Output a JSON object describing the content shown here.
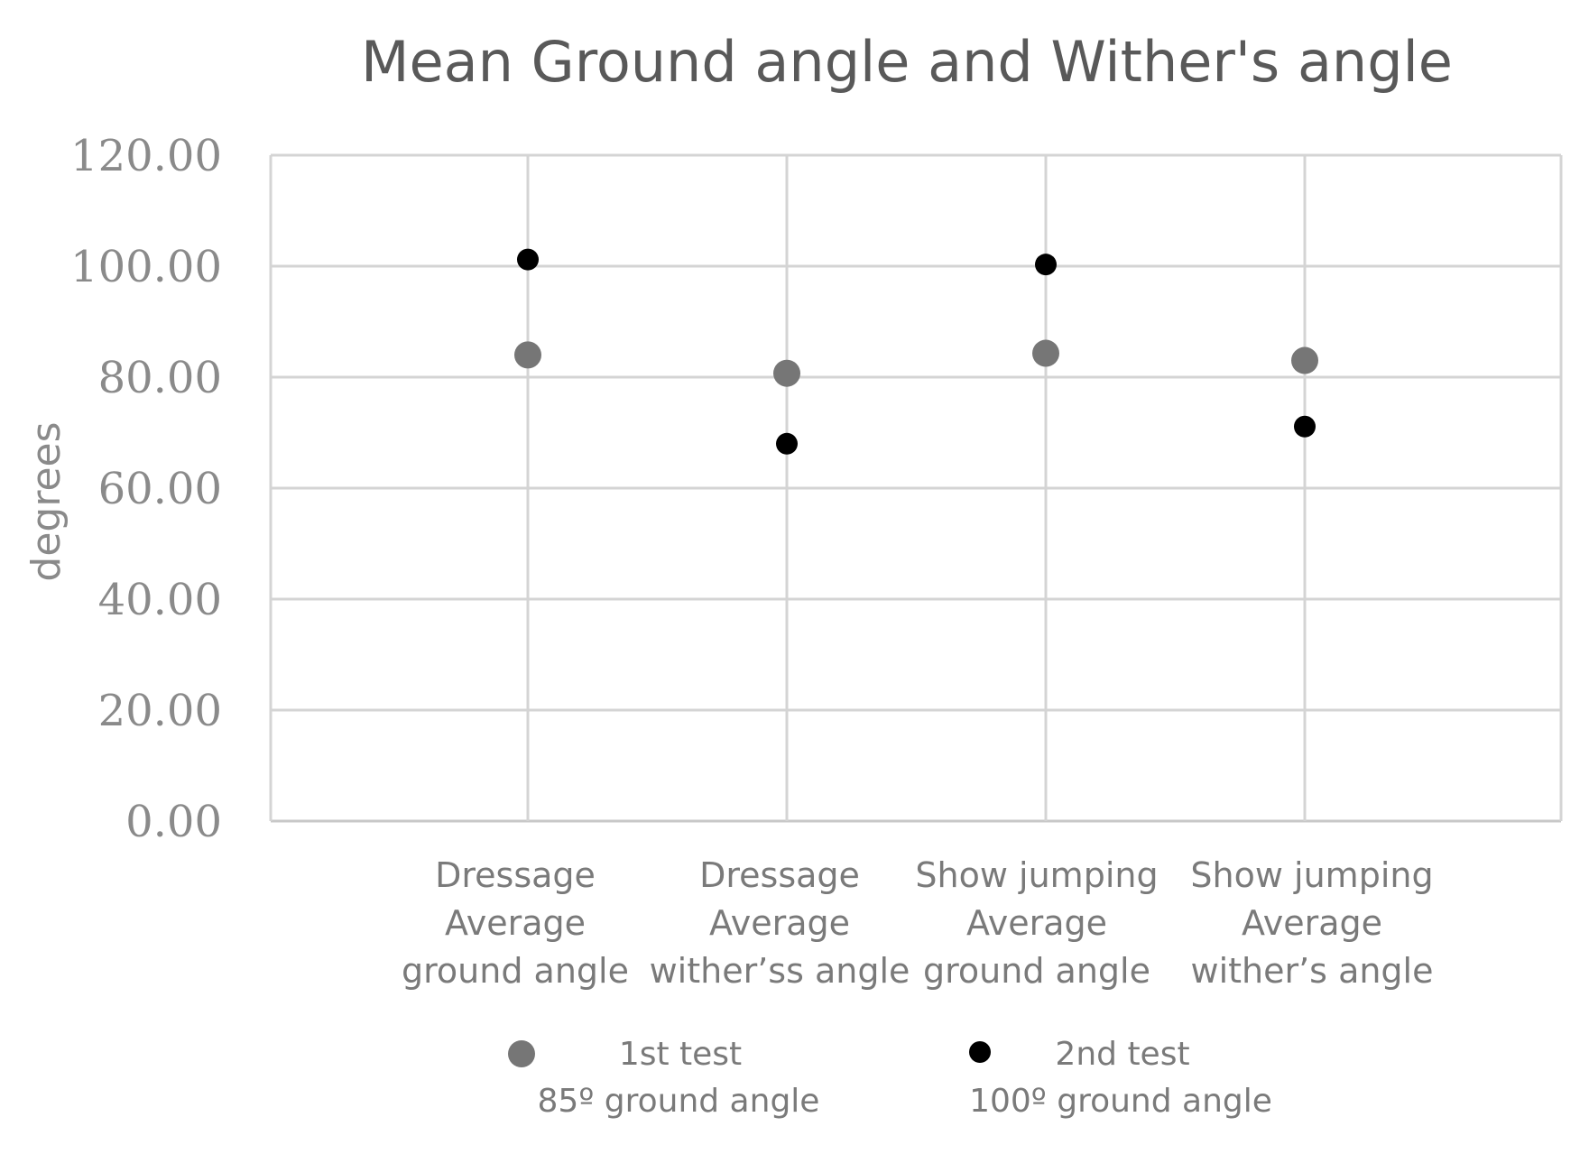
{
  "chart_data": {
    "type": "scatter",
    "title": "Mean Ground angle and Wither's angle",
    "ylabel": "degrees",
    "xlabel": "",
    "ylim": [
      0,
      120
    ],
    "yticks": [
      "0.00",
      "20.00",
      "40.00",
      "60.00",
      "80.00",
      "100.00",
      "120.00"
    ],
    "ytick_values": [
      0,
      20,
      40,
      60,
      80,
      100,
      120
    ],
    "grid": true,
    "legend_position": "bottom",
    "categories": [
      [
        "Dressage",
        "Average",
        "ground angle"
      ],
      [
        "Dressage",
        "Average",
        "wither’ss angle"
      ],
      [
        "Show jumping",
        "Average",
        "ground angle"
      ],
      [
        "Show jumping",
        "Average",
        "wither’s angle"
      ]
    ],
    "series": [
      {
        "name": [
          "1st test",
          "85º ground angle"
        ],
        "color": "#767676",
        "values": [
          84.0,
          80.7,
          84.3,
          83.0
        ]
      },
      {
        "name": [
          "2nd test",
          "100º ground angle"
        ],
        "color": "#000000",
        "values": [
          101.2,
          68.0,
          100.3,
          71.1
        ]
      }
    ]
  }
}
